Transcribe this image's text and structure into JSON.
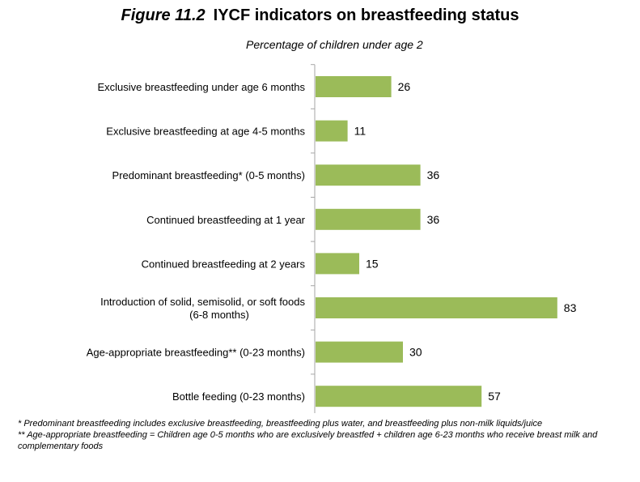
{
  "title": {
    "figure_label": "Figure 11.2",
    "text": "IYCF indicators on breastfeeding status"
  },
  "subtitle": "Percentage of children under age 2",
  "chart_data": {
    "type": "bar",
    "orientation": "horizontal",
    "categories": [
      [
        "Exclusive breastfeeding under age 6 months"
      ],
      [
        "Exclusive breastfeeding at age 4-5 months"
      ],
      [
        "Predominant breastfeeding* (0-5 months)"
      ],
      [
        "Continued breastfeeding at 1 year"
      ],
      [
        "Continued breastfeeding at 2 years"
      ],
      [
        "Introduction of solid, semisolid, or soft foods",
        "(6-8 months)"
      ],
      [
        "Age-appropriate breastfeeding** (0-23 months)"
      ],
      [
        "Bottle feeding (0-23 months)"
      ]
    ],
    "values": [
      26,
      11,
      36,
      36,
      15,
      83,
      30,
      57
    ],
    "xlim": [
      0,
      100
    ],
    "bar_color": "#9bbb59",
    "axis_color": "#a6a6a6",
    "grid": false,
    "data_labels": true
  },
  "footnotes": [
    "* Predominant breastfeeding includes exclusive breastfeeding, breastfeeding plus water, and breastfeeding plus non-milk liquids/juice",
    "** Age-appropriate breastfeeding = Children age 0-5 months who are exclusively breastfed + children age 6-23 months who receive breast milk and complementary foods"
  ]
}
